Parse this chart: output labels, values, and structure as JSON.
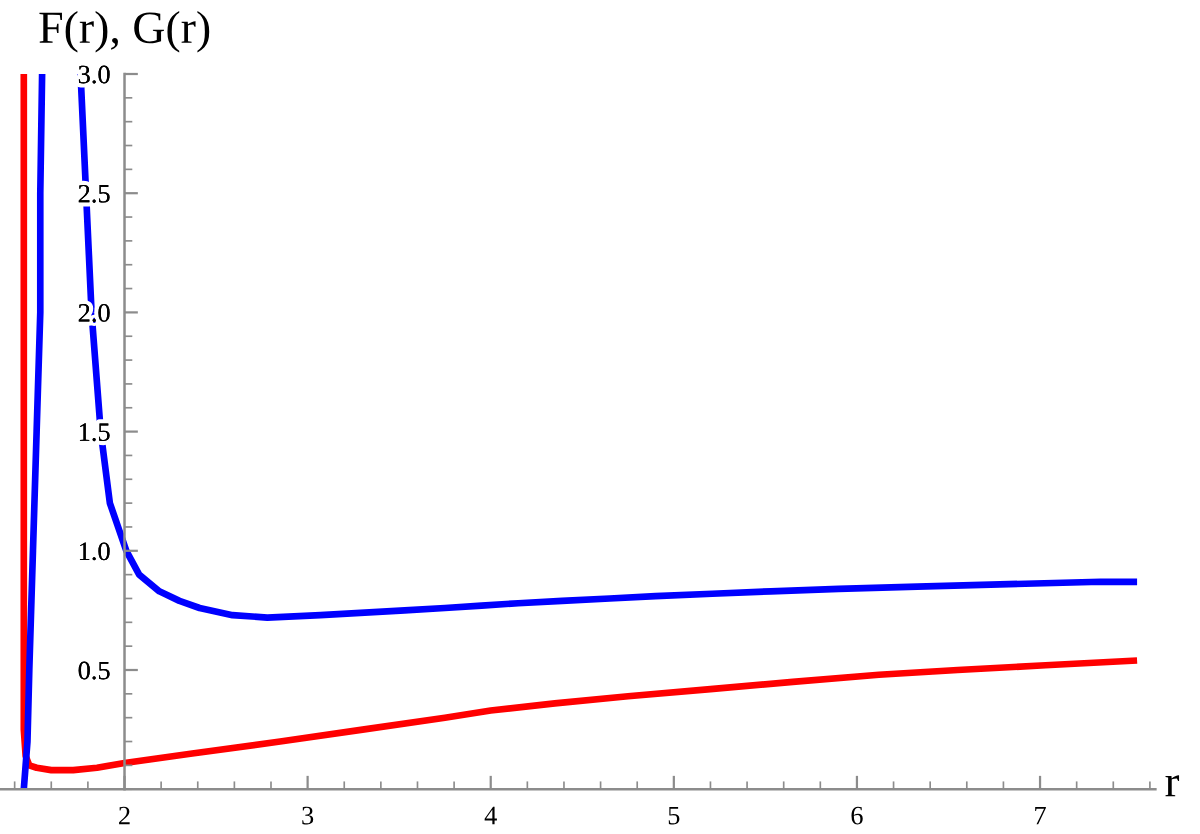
{
  "chart_data": {
    "type": "line",
    "xlabel": "r",
    "ylabel": "F(r), G(r)",
    "xlim": [
      1.32,
      7.63
    ],
    "ylim": [
      0,
      3.0
    ],
    "xticks": [
      2,
      3,
      4,
      5,
      6,
      7
    ],
    "yticks": [
      0.5,
      {
        "value": 1,
        "label": "1.0"
      },
      1.5,
      {
        "value": 2,
        "label": "2.0"
      },
      2.5,
      {
        "value": 3,
        "label": "3.0"
      }
    ],
    "series": [
      {
        "color": "#ff0000",
        "x": [
          1.45,
          1.45,
          1.45,
          1.45,
          1.46,
          1.48,
          1.52,
          1.6,
          1.72,
          1.85,
          2.0,
          2.37,
          2.85,
          3.3,
          3.75,
          4.0,
          4.35,
          4.75,
          5.2,
          5.65,
          6.12,
          6.55,
          7.03,
          7.53
        ],
        "values": [
          3.0,
          1.0,
          0.5,
          0.25,
          0.14,
          0.1,
          0.09,
          0.08,
          0.08,
          0.09,
          0.11,
          0.15,
          0.2,
          0.25,
          0.3,
          0.33,
          0.36,
          0.39,
          0.42,
          0.45,
          0.48,
          0.5,
          0.52,
          0.54
        ]
      },
      {
        "color": "#0000ff",
        "x": [
          1.45,
          1.46,
          1.47,
          1.48,
          1.5,
          1.52,
          1.54,
          1.54,
          1.55,
          1.65,
          1.76,
          1.79,
          1.82,
          1.87,
          1.92,
          2.01,
          2.08,
          2.19,
          2.3,
          2.41,
          2.59,
          2.78,
          3.07,
          3.53,
          3.75,
          3.95,
          4.15,
          4.39,
          4.65,
          4.9,
          5.21,
          5.53,
          5.9,
          6.33,
          6.83,
          7.33,
          7.53
        ],
        "values": [
          0.0,
          0.1,
          0.2,
          0.5,
          1.0,
          1.5,
          2.0,
          2.5,
          3.0,
          null,
          3.0,
          2.5,
          2.0,
          1.5,
          1.2,
          1.0,
          0.9,
          0.83,
          0.79,
          0.76,
          0.73,
          0.72,
          0.73,
          0.75,
          0.76,
          0.77,
          0.78,
          0.79,
          0.8,
          0.81,
          0.82,
          0.83,
          0.84,
          0.85,
          0.86,
          0.87,
          0.87
        ]
      }
    ]
  }
}
